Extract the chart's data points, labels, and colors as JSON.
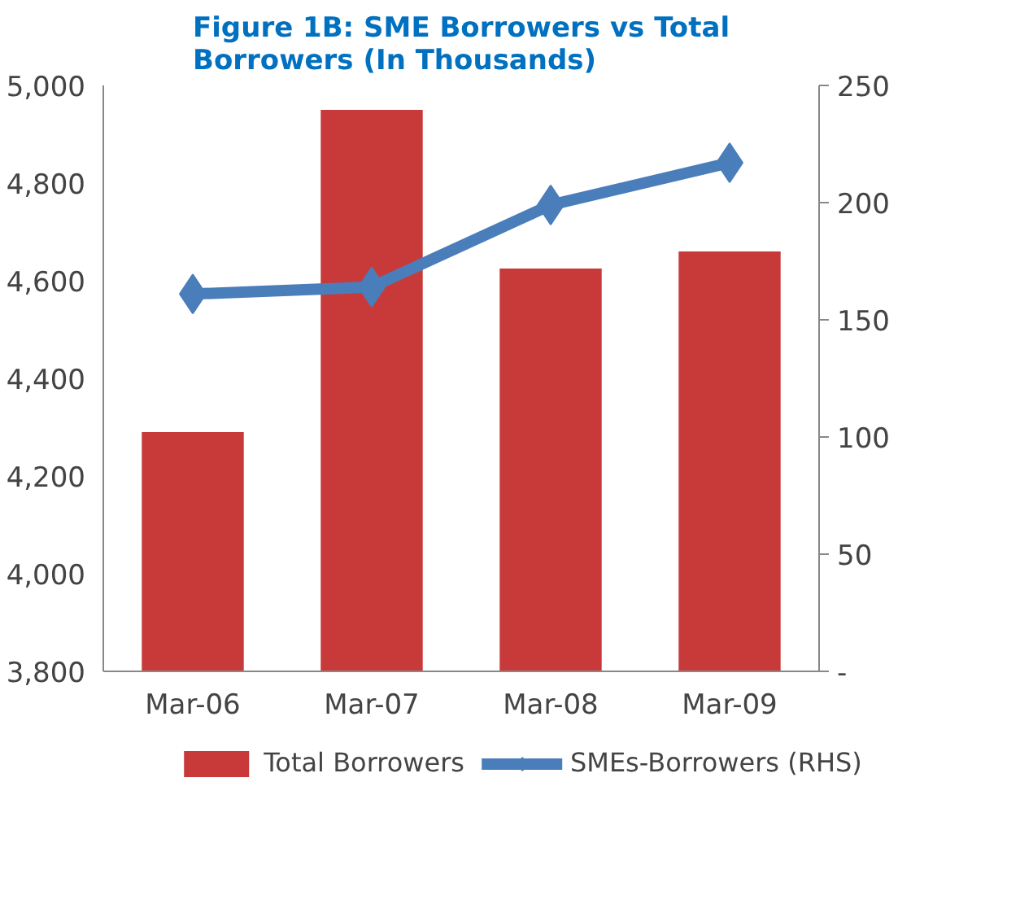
{
  "chart_data": {
    "type": "bar",
    "title": "Figure 1B: SME Borrowers vs Total Borrowers  (In Thousands)",
    "categories": [
      "Mar-06",
      "Mar-07",
      "Mar-08",
      "Mar-09"
    ],
    "series": [
      {
        "name": "Total Borrowers",
        "color": "#c83a3a",
        "values": [
          4290,
          4950,
          4625,
          4660
        ]
      },
      {
        "name": "SMEs-Borrowers (RHS)",
        "type": "line",
        "axis": "y2",
        "color": "#4a7ebb",
        "marker": "diamond",
        "values": [
          161,
          164,
          199,
          217
        ]
      }
    ],
    "ylim": [
      3800,
      5000
    ],
    "yticks": [
      {
        "value": 3800,
        "label": "3,800"
      },
      {
        "value": 4000,
        "label": "4,000"
      },
      {
        "value": 4200,
        "label": "4,200"
      },
      {
        "value": 4400,
        "label": "4,400"
      },
      {
        "value": 4600,
        "label": "4,600"
      },
      {
        "value": 4800,
        "label": "4,800"
      },
      {
        "value": 5000,
        "label": "5,000"
      }
    ],
    "y2lim": [
      0,
      250
    ],
    "y2ticks": [
      {
        "value": 0,
        "label": "-"
      },
      50,
      100,
      150,
      200,
      250
    ],
    "grid": false,
    "legend": "bottom"
  }
}
